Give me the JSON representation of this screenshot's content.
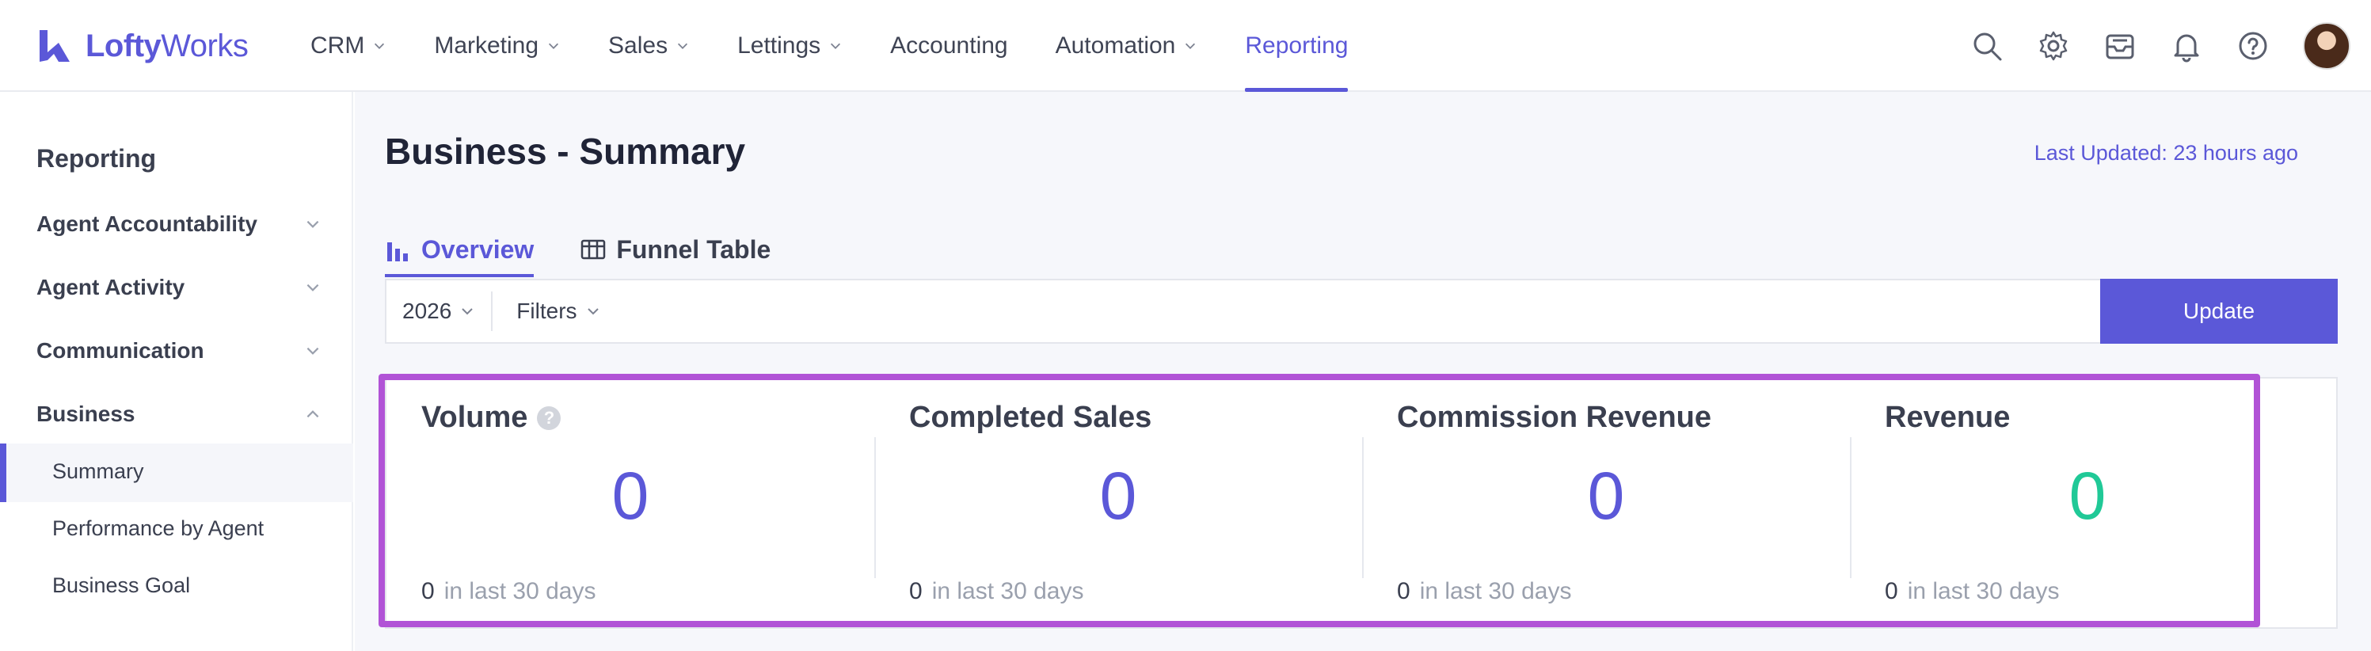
{
  "app": {
    "logo_bold": "Lofty",
    "logo_thin": "Works"
  },
  "nav": {
    "items": [
      {
        "label": "CRM",
        "dropdown": true
      },
      {
        "label": "Marketing",
        "dropdown": true
      },
      {
        "label": "Sales",
        "dropdown": true
      },
      {
        "label": "Lettings",
        "dropdown": true
      },
      {
        "label": "Accounting",
        "dropdown": false
      },
      {
        "label": "Automation",
        "dropdown": true
      },
      {
        "label": "Reporting",
        "dropdown": false,
        "active": true
      }
    ],
    "icons": [
      "search-icon",
      "gear-icon",
      "inbox-icon",
      "bell-icon",
      "help-icon"
    ]
  },
  "sidebar": {
    "title": "Reporting",
    "groups": [
      {
        "label": "Agent Accountability",
        "expanded": false
      },
      {
        "label": "Agent Activity",
        "expanded": false
      },
      {
        "label": "Communication",
        "expanded": false
      },
      {
        "label": "Business",
        "expanded": true
      }
    ],
    "business_items": [
      "Summary",
      "Performance by Agent",
      "Business Goal"
    ],
    "active_item": "Summary"
  },
  "main": {
    "title": "Business - Summary",
    "last_updated": "Last Updated: 23 hours ago",
    "tabs": [
      {
        "label": "Overview",
        "active": true
      },
      {
        "label": "Funnel Table",
        "active": false
      }
    ],
    "filters": {
      "year": "2026",
      "filters_label": "Filters",
      "update_label": "Update"
    },
    "metrics": [
      {
        "title": "Volume",
        "value": "0",
        "recent_count": "0",
        "recent_label": "in last 30 days",
        "has_help": true
      },
      {
        "title": "Completed Sales",
        "value": "0",
        "recent_count": "0",
        "recent_label": "in last 30 days"
      },
      {
        "title": "Commission Revenue",
        "value": "0",
        "recent_count": "0",
        "recent_label": "in last 30 days"
      },
      {
        "title": "Revenue",
        "value": "0",
        "recent_count": "0",
        "recent_label": "in last 30 days",
        "accent": "#20c997"
      }
    ]
  },
  "colors": {
    "brand": "#5b58d8",
    "highlight": "#b153d6",
    "revenue": "#20c997"
  }
}
